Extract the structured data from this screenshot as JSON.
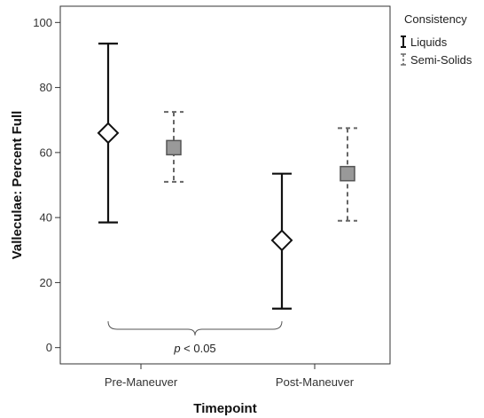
{
  "chart_data": {
    "type": "scatter",
    "xlabel": "Timepoint",
    "ylabel": "Valleculae: Percent Full",
    "categories": [
      "Pre-Maneuver",
      "Post-Maneuver"
    ],
    "ylim": [
      -5,
      105
    ],
    "yticks": [
      0,
      20,
      40,
      60,
      80,
      100
    ],
    "grid": false,
    "legend": {
      "title": "Consistency",
      "position": "right",
      "entries": [
        "Liquids",
        "Semi-Solids"
      ]
    },
    "series": [
      {
        "name": "Liquids",
        "marker": "diamond",
        "line": "solid",
        "color": "#111111",
        "values": [
          66,
          33
        ],
        "lower": [
          38.5,
          12
        ],
        "upper": [
          93.5,
          53.5
        ]
      },
      {
        "name": "Semi-Solids",
        "marker": "square",
        "line": "dashed",
        "color": "#666666",
        "fill": "#999999",
        "values": [
          61.5,
          53.5
        ],
        "lower": [
          51,
          39
        ],
        "upper": [
          72.5,
          67.5
        ]
      }
    ],
    "annotation": {
      "text_italic": "p",
      "text_rest": " < 0.05"
    }
  }
}
